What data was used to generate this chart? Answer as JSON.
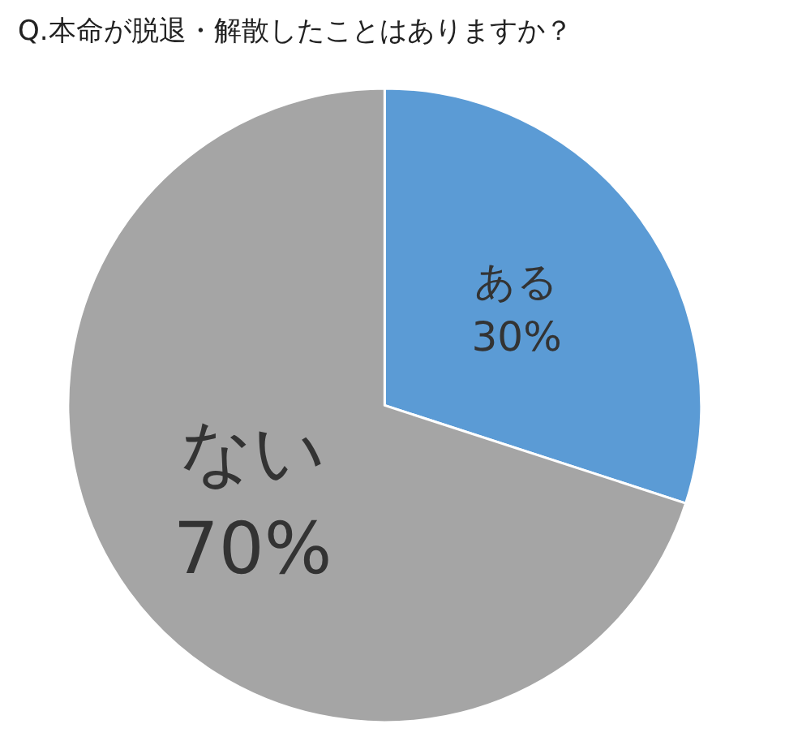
{
  "chart_data": {
    "type": "pie",
    "title": "Q.本命が脱退・解散したことはありますか？",
    "categories": [
      "ある",
      "ない"
    ],
    "values": [
      30,
      70
    ],
    "colors": [
      "#5b9bd5",
      "#a5a5a5"
    ],
    "value_labels": [
      "30%",
      "70%"
    ],
    "legend": false
  }
}
